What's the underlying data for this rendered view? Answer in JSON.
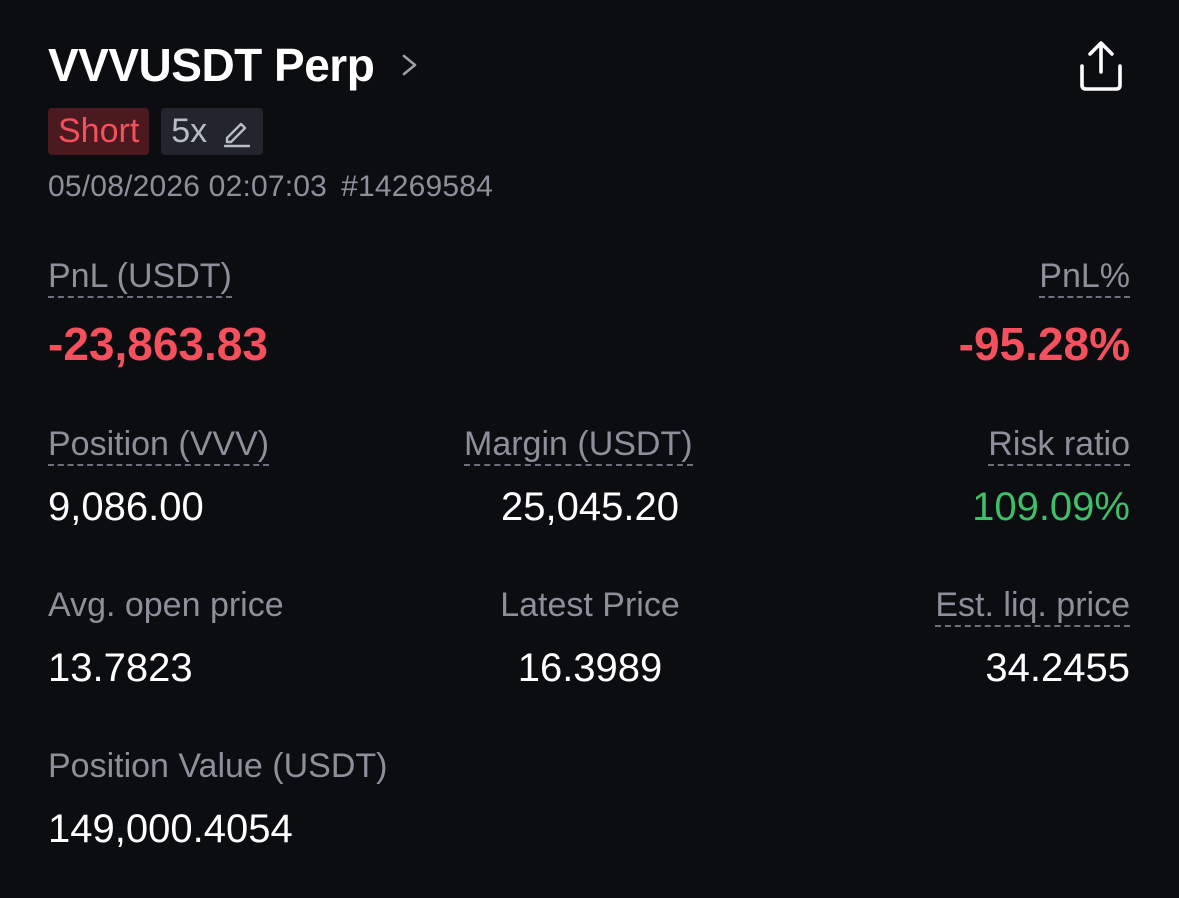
{
  "header": {
    "title": "VVVUSDT Perp",
    "chevron_icon": "chevron-right-icon",
    "share_icon": "share-upload-icon"
  },
  "tags": {
    "side": "Short",
    "leverage": "5x",
    "edit_icon": "pencil-icon"
  },
  "meta": {
    "datetime": "05/08/2026 02:07:03",
    "order_id": "#14269584"
  },
  "pnl": {
    "label": "PnL (USDT)",
    "value": "-23,863.83",
    "pct_label": "PnL%",
    "pct_value": "-95.28%"
  },
  "row1": {
    "position_label": "Position (VVV)",
    "position_value": "9,086.00",
    "margin_label": "Margin (USDT)",
    "margin_value": "25,045.20",
    "risk_label": "Risk ratio",
    "risk_value": "109.09%"
  },
  "row2": {
    "avg_label": "Avg. open price",
    "avg_value": "13.7823",
    "latest_label": "Latest Price",
    "latest_value": "16.3989",
    "liq_label": "Est. liq. price",
    "liq_value": "34.2455"
  },
  "row3": {
    "pv_label": "Position Value (USDT)",
    "pv_value": "149,000.4054"
  },
  "colors": {
    "background": "#0c0d10",
    "negative": "#f4505d",
    "positive": "#3fbf6a",
    "muted": "#8b909a"
  }
}
